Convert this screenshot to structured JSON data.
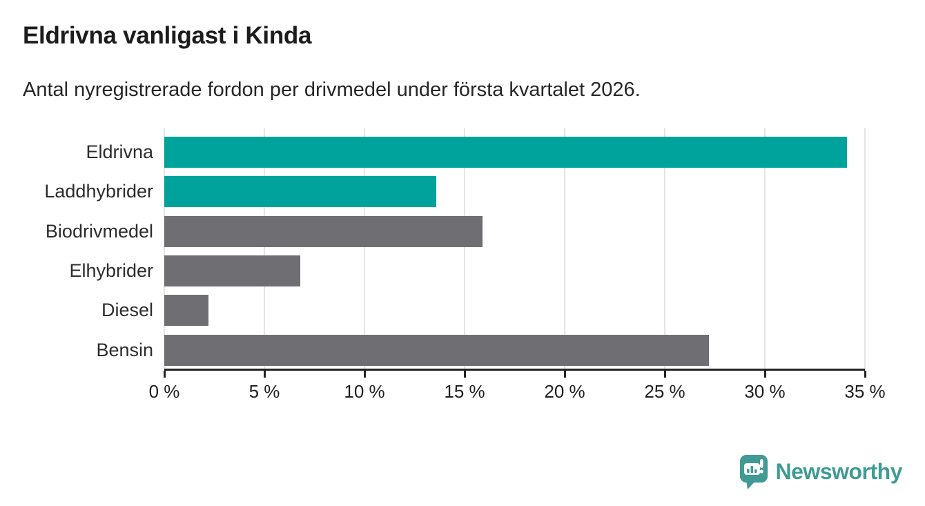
{
  "header": {
    "title": "Eldrivna vanligast i Kinda",
    "subtitle": "Antal nyregistrerade fordon per drivmedel under första kvartalet 2026."
  },
  "chart_data": {
    "type": "bar",
    "orientation": "horizontal",
    "title": "Eldrivna vanligast i Kinda",
    "subtitle": "Antal nyregistrerade fordon per drivmedel under första kvartalet 2026.",
    "categories": [
      "Eldrivna",
      "Laddhybrider",
      "Biodrivmedel",
      "Elhybrider",
      "Diesel",
      "Bensin"
    ],
    "values": [
      34.1,
      13.6,
      15.9,
      6.8,
      2.2,
      27.2
    ],
    "value_unit": "%",
    "xlim": [
      0,
      35
    ],
    "x_ticks": [
      {
        "value": 0,
        "label": "0 %"
      },
      {
        "value": 5,
        "label": "5 %"
      },
      {
        "value": 10,
        "label": "10 %"
      },
      {
        "value": 15,
        "label": "15 %"
      },
      {
        "value": 20,
        "label": "20 %"
      },
      {
        "value": 25,
        "label": "25 %"
      },
      {
        "value": 30,
        "label": "30 %"
      },
      {
        "value": 35,
        "label": "35 %"
      }
    ],
    "bar_colors": [
      "#00a39b",
      "#00a39b",
      "#6e6e73",
      "#6e6e73",
      "#6e6e73",
      "#6e6e73"
    ],
    "grid": true,
    "legend": false,
    "xlabel": "",
    "ylabel": ""
  },
  "colors": {
    "accent_teal": "#00a39b",
    "muted_gray": "#6e6e73",
    "gridline": "#e4e4e4",
    "axis": "#222222",
    "text_dark": "#1c1c1c",
    "brand_teal": "#3f9b94",
    "background": "#ffffff"
  },
  "footer": {
    "brand": "Newsworthy",
    "logo_icon": "newsworthy-speech-bubble-chart-icon"
  }
}
